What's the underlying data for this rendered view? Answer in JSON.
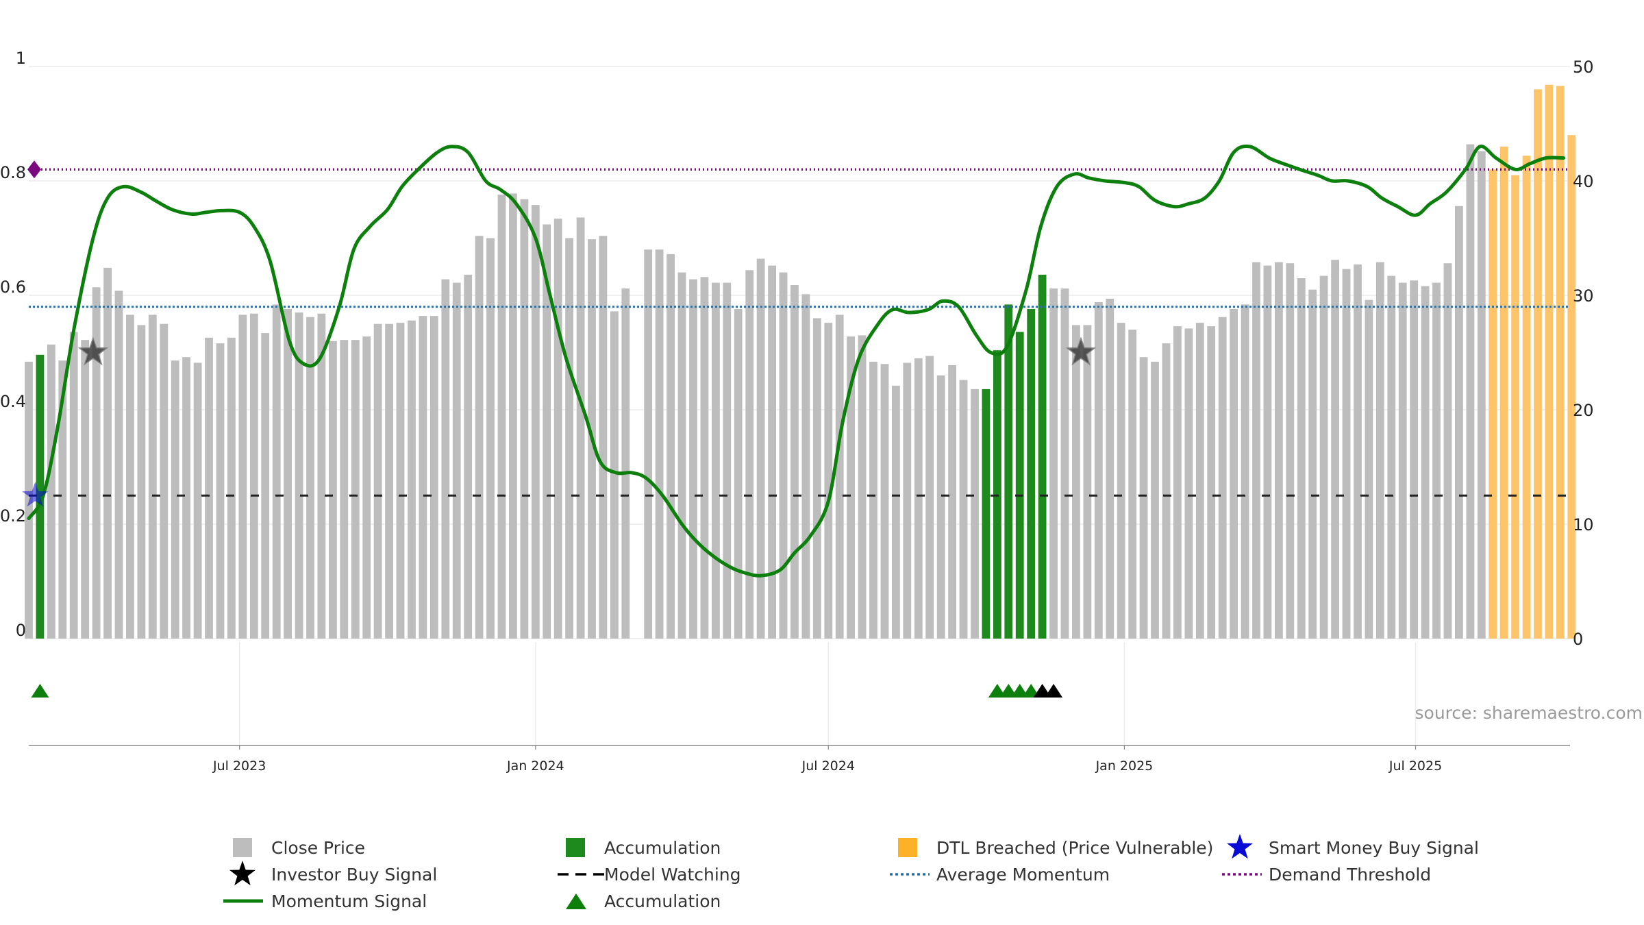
{
  "chart_data": {
    "type": "bar",
    "source_text": "source: sharemaestro.com",
    "left_axis": {
      "ylim": [
        0,
        1
      ],
      "ticks": [
        "0",
        "0.2",
        "0.4",
        "0.6",
        "0.8",
        "1"
      ],
      "tick_values": [
        0,
        0.2,
        0.4,
        0.6,
        0.8,
        1
      ]
    },
    "right_axis": {
      "ylim": [
        0,
        50
      ],
      "ticks": [
        "0",
        "10",
        "20",
        "30",
        "40",
        "50"
      ],
      "tick_values": [
        0,
        10,
        20,
        30,
        40,
        50
      ]
    },
    "x_axis": {
      "start": "2023-02-20",
      "end": "2025-10-05",
      "ticks": [
        {
          "date": "2023-07-01",
          "label": "Jul 2023"
        },
        {
          "date": "2024-01-01",
          "label": "Jan 2024"
        },
        {
          "date": "2024-07-01",
          "label": "Jul 2024"
        },
        {
          "date": "2025-01-01",
          "label": "Jan 2025"
        },
        {
          "date": "2025-07-01",
          "label": "Jul 2025"
        }
      ]
    },
    "bars": {
      "start_date": "2023-02-20",
      "interval_days": 7,
      "values": [
        24.2,
        24.8,
        25.7,
        24.3,
        26.8,
        26.1,
        30.7,
        32.4,
        30.4,
        28.3,
        27.4,
        28.3,
        27.5,
        24.3,
        24.6,
        24.1,
        26.3,
        25.8,
        26.3,
        28.3,
        28.4,
        26.7,
        29.2,
        28.8,
        28.5,
        28.1,
        28.4,
        26.0,
        26.1,
        26.1,
        26.4,
        27.5,
        27.5,
        27.6,
        27.8,
        28.2,
        28.2,
        31.4,
        31.1,
        31.8,
        35.2,
        35.0,
        38.8,
        38.9,
        38.4,
        37.9,
        36.2,
        36.7,
        35.0,
        36.8,
        34.9,
        35.2,
        28.6,
        30.6,
        0,
        34.0,
        34.0,
        33.6,
        32.0,
        31.4,
        31.6,
        31.1,
        31.1,
        28.8,
        32.2,
        33.2,
        32.6,
        32.0,
        30.9,
        30.1,
        28.0,
        27.6,
        28.3,
        26.4,
        26.5,
        24.2,
        24.0,
        22.1,
        24.1,
        24.5,
        24.7,
        23.0,
        23.9,
        22.6,
        21.8,
        21.8,
        25.2,
        29.2,
        26.8,
        28.8,
        31.8,
        30.6,
        30.6,
        27.4,
        27.4,
        29.4,
        29.7,
        27.6,
        27.0,
        24.6,
        24.2,
        25.8,
        27.3,
        27.1,
        27.6,
        27.3,
        28.1,
        28.8,
        29.2,
        32.9,
        32.6,
        32.9,
        32.8,
        31.5,
        30.5,
        31.7,
        33.1,
        32.3,
        32.7,
        29.6,
        32.9,
        31.7,
        31.1,
        31.3,
        30.8,
        31.1,
        32.8,
        37.8,
        43.2,
        42.6,
        41.0,
        43.0,
        40.5,
        42.2,
        48.0,
        48.4,
        48.3,
        44.0
      ],
      "accumulation_indices": [
        1,
        85,
        86,
        87,
        88,
        89,
        90
      ],
      "dtl_breached_start_index": 130,
      "colors": {
        "close_price": "#bdbdbd",
        "accumulation": "#1e8a1e",
        "dtl_breached": "#fdc46a"
      }
    },
    "momentum_signal": {
      "color": "#0c7f0c",
      "dates": [
        "2023-02-20",
        "2023-03-01",
        "2023-03-10",
        "2023-03-20",
        "2023-04-01",
        "2023-04-10",
        "2023-04-20",
        "2023-05-01",
        "2023-05-10",
        "2023-05-20",
        "2023-06-01",
        "2023-06-10",
        "2023-06-20",
        "2023-07-01",
        "2023-07-10",
        "2023-07-20",
        "2023-08-01",
        "2023-08-10",
        "2023-08-20",
        "2023-09-01",
        "2023-09-10",
        "2023-09-20",
        "2023-10-01",
        "2023-10-10",
        "2023-10-20",
        "2023-11-01",
        "2023-11-10",
        "2023-11-20",
        "2023-12-01",
        "2023-12-10",
        "2023-12-20",
        "2024-01-01",
        "2024-01-10",
        "2024-01-20",
        "2024-02-01",
        "2024-02-10",
        "2024-02-20",
        "2024-03-01",
        "2024-03-10",
        "2024-03-20",
        "2024-04-01",
        "2024-04-10",
        "2024-04-20",
        "2024-05-01",
        "2024-05-10",
        "2024-05-20",
        "2024-06-01",
        "2024-06-10",
        "2024-06-20",
        "2024-07-01",
        "2024-07-10",
        "2024-07-20",
        "2024-08-01",
        "2024-08-10",
        "2024-08-20",
        "2024-09-01",
        "2024-09-10",
        "2024-09-20",
        "2024-10-01",
        "2024-10-10",
        "2024-10-20",
        "2024-11-01",
        "2024-11-10",
        "2024-11-20",
        "2024-12-01",
        "2024-12-10",
        "2024-12-20",
        "2025-01-01",
        "2025-01-10",
        "2025-01-20",
        "2025-02-01",
        "2025-02-10",
        "2025-02-20",
        "2025-03-01",
        "2025-03-10",
        "2025-03-20",
        "2025-04-01",
        "2025-04-10",
        "2025-04-20",
        "2025-05-01",
        "2025-05-10",
        "2025-05-20",
        "2025-06-01",
        "2025-06-10",
        "2025-06-20",
        "2025-07-01",
        "2025-07-10",
        "2025-07-20",
        "2025-08-01",
        "2025-08-10",
        "2025-08-20",
        "2025-09-01",
        "2025-09-10",
        "2025-09-20",
        "2025-10-01"
      ],
      "values": [
        0.21,
        0.25,
        0.37,
        0.54,
        0.7,
        0.77,
        0.79,
        0.78,
        0.765,
        0.75,
        0.742,
        0.745,
        0.748,
        0.745,
        0.72,
        0.66,
        0.52,
        0.48,
        0.49,
        0.58,
        0.68,
        0.72,
        0.75,
        0.79,
        0.82,
        0.85,
        0.86,
        0.85,
        0.8,
        0.785,
        0.76,
        0.7,
        0.6,
        0.49,
        0.39,
        0.31,
        0.29,
        0.29,
        0.28,
        0.25,
        0.2,
        0.17,
        0.145,
        0.125,
        0.115,
        0.11,
        0.12,
        0.15,
        0.18,
        0.24,
        0.38,
        0.49,
        0.55,
        0.575,
        0.57,
        0.575,
        0.59,
        0.58,
        0.53,
        0.5,
        0.51,
        0.61,
        0.72,
        0.79,
        0.812,
        0.805,
        0.8,
        0.797,
        0.79,
        0.766,
        0.755,
        0.76,
        0.77,
        0.8,
        0.85,
        0.86,
        0.84,
        0.83,
        0.82,
        0.81,
        0.8,
        0.8,
        0.79,
        0.77,
        0.755,
        0.74,
        0.76,
        0.78,
        0.82,
        0.86,
        0.84,
        0.82,
        0.83,
        0.84,
        0.84
      ]
    },
    "reference_lines": {
      "demand_threshold": {
        "value": 0.82,
        "color": "#7b0a80"
      },
      "average_momentum": {
        "value": 0.58,
        "color": "#2f6f9f"
      },
      "model_watching": {
        "value": 0.25,
        "color": "#222222"
      }
    },
    "markers": {
      "investor_buy_signal": [
        {
          "date": "2023-04-01",
          "value": 0.5
        },
        {
          "date": "2024-12-05",
          "value": 0.5
        }
      ],
      "smart_money_buy_signal": [
        {
          "date": "2023-02-24",
          "value": 0.25
        }
      ],
      "demand_threshold_marker": {
        "date": "2023-02-20",
        "value": 0.82
      },
      "accumulation_triangles": [
        {
          "date": "2023-02-27",
          "color": "#0c7f0c"
        },
        {
          "date": "2024-10-14",
          "color": "#0c7f0c"
        },
        {
          "date": "2024-10-21",
          "color": "#0c7f0c"
        },
        {
          "date": "2024-10-28",
          "color": "#0c7f0c"
        },
        {
          "date": "2024-11-04",
          "color": "#0c7f0c"
        },
        {
          "date": "2024-11-11",
          "color": "#000000"
        },
        {
          "date": "2024-11-18",
          "color": "#000000"
        }
      ]
    },
    "legend": {
      "placement": "bottom",
      "entries": [
        {
          "label": "Close Price",
          "symbol": "square",
          "color": "#bdbdbd"
        },
        {
          "label": "Accumulation",
          "symbol": "square",
          "color": "#1e8a1e"
        },
        {
          "label": "DTL Breached (Price Vulnerable)",
          "symbol": "square",
          "color": "#fdb128"
        },
        {
          "label": "Smart Money Buy Signal",
          "symbol": "star",
          "color": "#0a0ad6"
        },
        {
          "label": "Investor Buy Signal",
          "symbol": "star",
          "color": "#000000"
        },
        {
          "label": "Model Watching",
          "symbol": "dash",
          "color": "#000000"
        },
        {
          "label": "Average Momentum",
          "symbol": "dot",
          "color": "#2f6f9f"
        },
        {
          "label": "Demand Threshold",
          "symbol": "dot",
          "color": "#7b0a80"
        },
        {
          "label": "Momentum Signal",
          "symbol": "line",
          "color": "#0c7f0c"
        },
        {
          "label": "Accumulation",
          "symbol": "triangle",
          "color": "#0c7f0c"
        }
      ]
    }
  }
}
